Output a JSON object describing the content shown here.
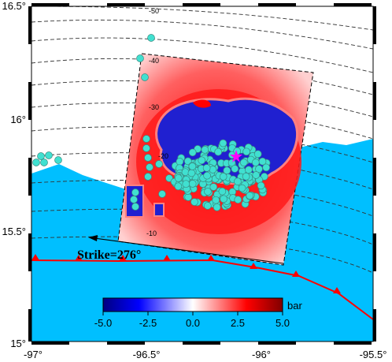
{
  "map": {
    "lon_range": [
      -97.0,
      -95.5
    ],
    "lat_range": [
      15.0,
      16.5
    ],
    "x_tick_labels": [
      "-97°",
      "-96.5°",
      "-96°",
      "-95.5°"
    ],
    "y_tick_labels": [
      "16.5°",
      "16°",
      "15.5°",
      "15°"
    ],
    "contour_labels": [
      "-50",
      "-40",
      "-30",
      "-20",
      "-10"
    ],
    "strike_label": "Strike=276°",
    "colorbar": {
      "unit": "bar",
      "ticks": [
        "-5.0",
        "-2.5",
        "0.0",
        "2.5",
        "5.0"
      ],
      "range": [
        -5.0,
        5.0
      ]
    },
    "colors": {
      "ocean": "#00BFFF",
      "land": "#FFFFFF",
      "trench": "#FF0000",
      "aftershock": "#40E0D0",
      "mainshock": "#FF00FF",
      "positive_stress": "#FF0000",
      "negative_stress": "#0000CC"
    }
  }
}
